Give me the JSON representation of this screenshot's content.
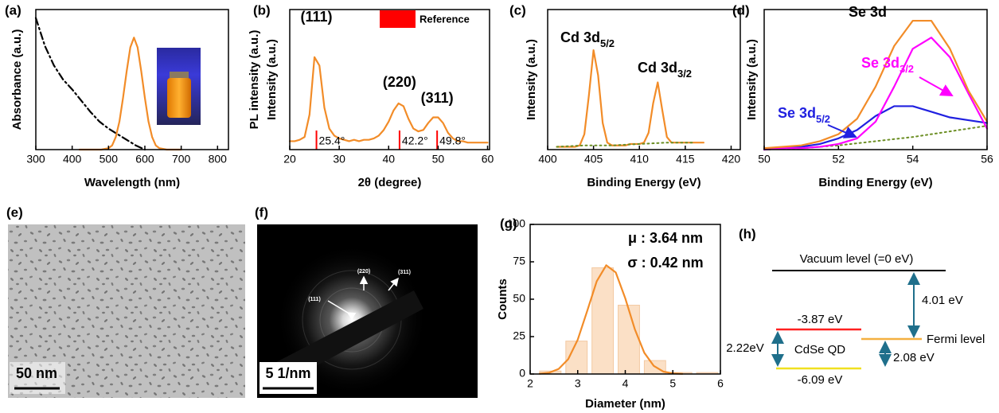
{
  "chart_data": [
    {
      "type": "line",
      "label": "(a)",
      "xlabel": "Wavelength (nm)",
      "ylabel": "Absorbance (a.u.)",
      "xlim": [
        300,
        830
      ],
      "xticks": [
        300,
        400,
        500,
        600,
        700,
        800
      ],
      "ylim": [
        0,
        1
      ],
      "series": [
        {
          "color": "#000000",
          "style": "dashdot",
          "x": [
            300,
            310,
            325,
            350,
            375,
            400,
            425,
            450,
            475,
            500,
            525,
            550,
            575,
            600
          ],
          "values": [
            0.94,
            0.86,
            0.74,
            0.6,
            0.5,
            0.43,
            0.35,
            0.27,
            0.2,
            0.15,
            0.11,
            0.07,
            0.03,
            0
          ]
        },
        {
          "color": "#f28c28",
          "style": "solid",
          "x": [
            420,
            450,
            480,
            500,
            510,
            520,
            530,
            540,
            550,
            560,
            570,
            580,
            590,
            600,
            610,
            620,
            630,
            640,
            660,
            700
          ],
          "values": [
            0,
            0,
            0,
            0.01,
            0.03,
            0.09,
            0.2,
            0.37,
            0.56,
            0.73,
            0.8,
            0.73,
            0.56,
            0.37,
            0.2,
            0.09,
            0.03,
            0.01,
            0,
            0
          ]
        }
      ]
    },
    {
      "type": "line",
      "label": "(b)",
      "xlabel": "2θ (degree)",
      "ylabel": "Intensity (a.u.)",
      "ylabel_outer": "PL intensity (a.u.)",
      "xlim": [
        20,
        60.4
      ],
      "xticks": [
        20,
        30,
        40,
        50,
        60
      ],
      "ylim": [
        0,
        1
      ],
      "series": [
        {
          "color": "#f28c28",
          "style": "solid",
          "x": [
            20,
            21,
            22,
            23,
            24,
            25,
            26,
            27,
            28,
            29,
            30,
            31,
            32,
            33,
            34,
            35,
            36,
            37,
            38,
            39,
            40,
            41,
            42,
            43,
            44,
            45,
            46,
            47,
            48,
            49,
            50,
            51,
            52,
            53,
            54,
            55,
            56,
            57,
            58,
            59,
            60
          ],
          "values": [
            0.06,
            0.06,
            0.07,
            0.09,
            0.25,
            0.66,
            0.6,
            0.3,
            0.15,
            0.1,
            0.08,
            0.07,
            0.06,
            0.07,
            0.06,
            0.07,
            0.07,
            0.08,
            0.1,
            0.14,
            0.2,
            0.28,
            0.33,
            0.31,
            0.22,
            0.15,
            0.13,
            0.14,
            0.19,
            0.23,
            0.23,
            0.19,
            0.12,
            0.08,
            0.06,
            0.06,
            0.05,
            0.05,
            0.05,
            0.05,
            0.05
          ]
        }
      ],
      "reference": {
        "name": "Reference",
        "color": "#ff0000",
        "x": [
          25.4,
          42.2,
          49.8
        ],
        "value_labels": [
          "25.4°",
          "42.2°",
          "49.8°"
        ]
      },
      "annotations": [
        {
          "text": "(111)"
        },
        {
          "text": "(220)"
        },
        {
          "text": "(311)"
        }
      ]
    },
    {
      "type": "line",
      "label": "(c)",
      "xlabel": "Binding Energy (eV)",
      "ylabel": "Intensity (a.u.)",
      "xlim": [
        400,
        421
      ],
      "xticks": [
        400,
        405,
        410,
        415,
        420
      ],
      "ylim": [
        0,
        1
      ],
      "series": [
        {
          "color": "#f28c28",
          "style": "solid",
          "x": [
            401,
            401.5,
            402,
            402.5,
            403,
            403.5,
            404,
            404.5,
            405,
            405.5,
            406,
            406.5,
            407,
            407.5,
            408,
            408.5,
            409,
            409.5,
            410,
            410.5,
            411,
            411.5,
            412,
            412.5,
            413,
            413.5,
            414,
            414.5,
            415,
            415.5,
            416,
            416.5,
            417
          ],
          "values": [
            0.02,
            0.02,
            0.02,
            0.02,
            0.02,
            0.03,
            0.11,
            0.39,
            0.71,
            0.53,
            0.19,
            0.05,
            0.03,
            0.03,
            0.03,
            0.03,
            0.04,
            0.04,
            0.04,
            0.05,
            0.12,
            0.33,
            0.48,
            0.28,
            0.09,
            0.05,
            0.05,
            0.05,
            0.05,
            0.05,
            0.05,
            0.05,
            0.05
          ]
        },
        {
          "color": "#6b8e23",
          "style": "dotted",
          "x": [
            401,
            404,
            407,
            410,
            413,
            416
          ],
          "values": [
            0.02,
            0.03,
            0.03,
            0.04,
            0.05,
            0.05
          ]
        }
      ],
      "annotations": [
        {
          "text": "Cd 3d",
          "sub": "5/2"
        },
        {
          "text": "Cd 3d",
          "sub": "3/2"
        }
      ]
    },
    {
      "type": "line",
      "label": "(d)",
      "xlabel": "Binding Energy (eV)",
      "ylabel": "Intensity (a.u.)",
      "xlim": [
        50,
        56
      ],
      "xticks": [
        50,
        52,
        54,
        56
      ],
      "ylim": [
        0,
        1
      ],
      "series": [
        {
          "color": "#6b8e23",
          "style": "dotted",
          "x": [
            50,
            51,
            52,
            53,
            54,
            55,
            56
          ],
          "values": [
            0,
            0.01,
            0.03,
            0.06,
            0.09,
            0.13,
            0.17
          ]
        },
        {
          "color": "#2020e0",
          "style": "solid",
          "x": [
            50,
            50.5,
            51,
            51.5,
            52,
            52.5,
            53,
            53.5,
            54,
            54.5,
            55,
            55.5,
            56
          ],
          "values": [
            0,
            0.01,
            0.02,
            0.04,
            0.08,
            0.14,
            0.24,
            0.31,
            0.31,
            0.27,
            0.23,
            0.21,
            0.19
          ]
        },
        {
          "color": "#ff00ff",
          "style": "solid",
          "x": [
            50,
            50.5,
            51,
            51.5,
            52,
            52.5,
            53,
            53.5,
            54,
            54.5,
            55,
            55.5,
            56
          ],
          "values": [
            0,
            0.01,
            0.01,
            0.02,
            0.04,
            0.08,
            0.2,
            0.45,
            0.72,
            0.8,
            0.66,
            0.4,
            0.15
          ]
        },
        {
          "color": "#f28c28",
          "style": "solid",
          "x": [
            50,
            50.5,
            51,
            51.5,
            52,
            52.5,
            53,
            53.5,
            54,
            54.5,
            55,
            55.5,
            56
          ],
          "values": [
            0.01,
            0.02,
            0.03,
            0.06,
            0.11,
            0.22,
            0.45,
            0.74,
            0.92,
            0.92,
            0.72,
            0.42,
            0.2
          ]
        }
      ],
      "annotations": [
        {
          "text": "Se 3d",
          "color": "#000000"
        },
        {
          "text": "Se 3d",
          "sub": "3/2",
          "color": "#ff00ff"
        },
        {
          "text": "Se 3d",
          "sub": "5/2",
          "color": "#2020e0"
        }
      ]
    },
    {
      "type": "histogram",
      "label": "(g)",
      "xlabel": "Diameter (nm)",
      "ylabel": "Counts",
      "xlim": [
        2,
        6
      ],
      "xticks": [
        2,
        3,
        4,
        5,
        6
      ],
      "ylim": [
        0,
        100
      ],
      "yticks": [
        0,
        25,
        50,
        75,
        100
      ],
      "bins": [
        2.15,
        2.7,
        3.25,
        3.8,
        4.35,
        4.9,
        5.45,
        6
      ],
      "counts": [
        2,
        22,
        71,
        46,
        9,
        1,
        1
      ],
      "color": "#fbe0c6",
      "series": [
        {
          "color": "#f28c28",
          "style": "solid",
          "x": [
            2.2,
            2.4,
            2.6,
            2.8,
            3,
            3.2,
            3.4,
            3.6,
            3.8,
            4,
            4.2,
            4.4,
            4.6,
            4.8,
            5,
            5.2
          ],
          "values": [
            0.2,
            0.9,
            3.4,
            9.9,
            22.9,
            42.2,
            62,
            72.7,
            67.9,
            50.6,
            30,
            14.2,
            5.4,
            1.6,
            0.4,
            0.1
          ]
        }
      ],
      "annotations": [
        {
          "text": "μ : 3.64 nm"
        },
        {
          "text": "σ : 0.42 nm"
        }
      ]
    }
  ],
  "images": [
    {
      "label": "(e)",
      "scale_bar": "50 nm"
    },
    {
      "label": "(f)",
      "scale_bar": "5 1/nm",
      "rings": [
        "(111)",
        "(220)",
        "(311)"
      ]
    }
  ],
  "diagram": {
    "label": "(h)",
    "vacuum_level": "Vacuum level (=0 eV)",
    "work_function": "4.01 eV",
    "cbm": "-3.87 eV",
    "vbm": "-6.09 eV",
    "fermi_level": "Fermi level",
    "band_gap": "2.22eV",
    "material": "CdSe QD",
    "fermi_to_vbm": "2.08 eV"
  }
}
